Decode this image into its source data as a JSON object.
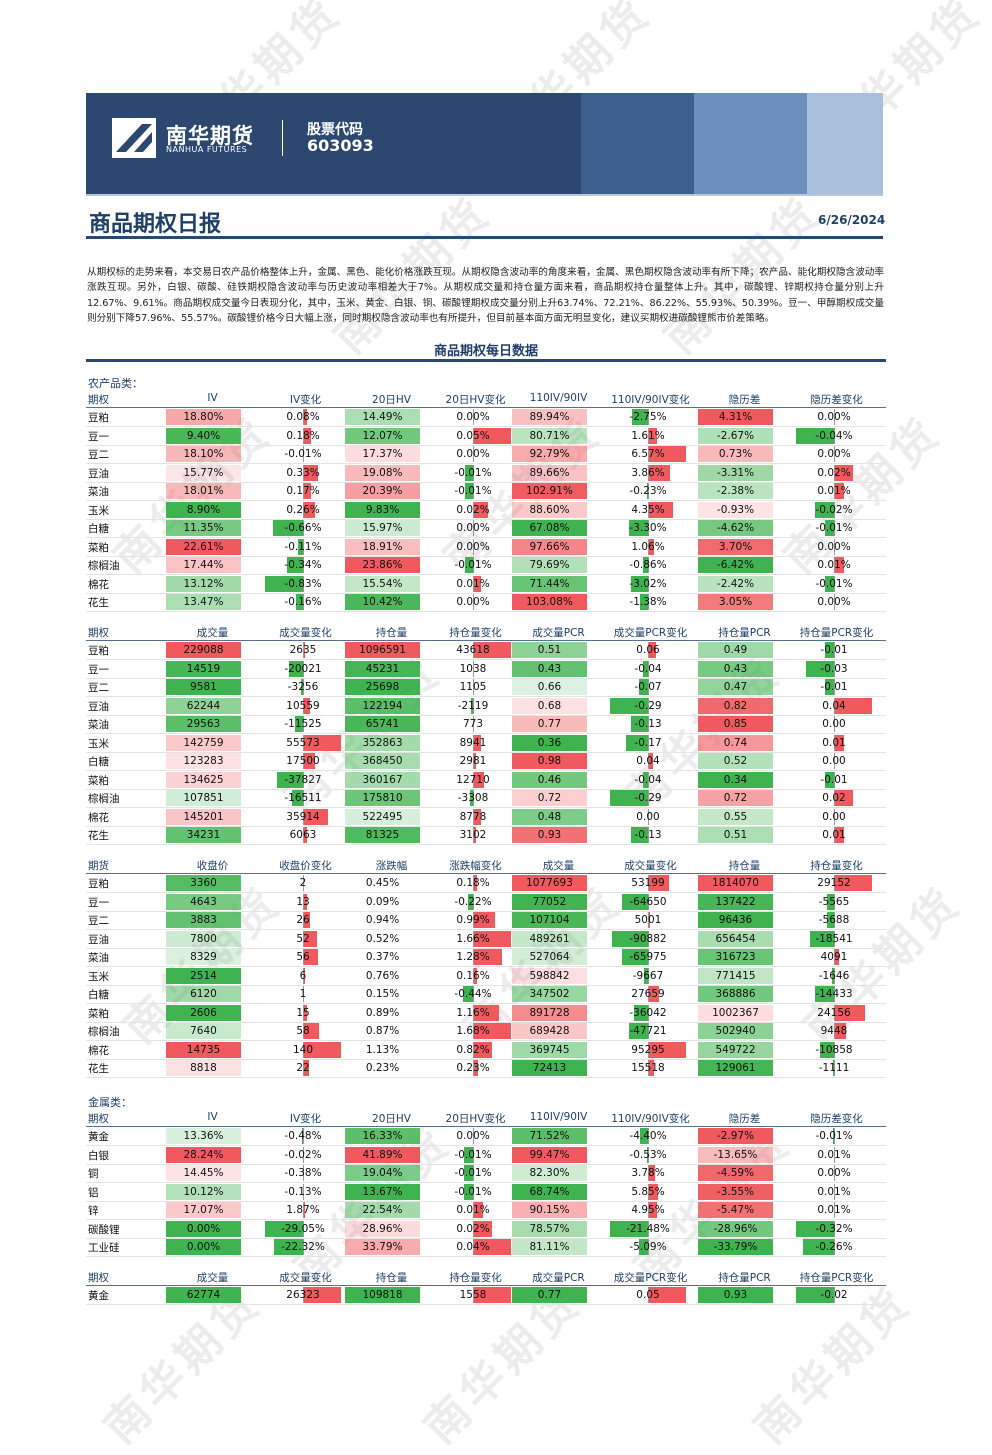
{
  "header": {
    "logo_cn": "南华期货",
    "logo_en": "NANHUA FUTURES",
    "stock_label": "股票代码",
    "stock_code": "603093"
  },
  "title": "商品期权日报",
  "date": "6/26/2024",
  "summary": "从期权标的走势来看，本交易日农产品价格整体上升，金属、黑色、能化价格涨跌互现。从期权隐含波动率的角度来看，金属、黑色期权隐含波动率有所下降；农产品、能化期权隐含波动率涨跌互现。另外，白银、碳酸、硅铁期权隐含波动率与历史波动率相差大于7%。从期权成交量和持仓量方面来看，商品期权持仓量整体上升。其中，碳酸锂、锌期权持仓量分别上升12.67%、9.61%。商品期权成交量今日表现分化，其中，玉米、黄金、白银、铜、碳酸锂期权成交量分别上升63.74%、72.21%、86.22%、55.93%、50.39%。豆一、甲醇期权成交量则分别下降57.96%、55.57%。碳酸锂价格今日大幅上涨，同时期权隐含波动率也有所提升，但目前基本面方面无明显变化，建议买期权进碳酸锂熊市价差策略。",
  "section_title": "商品期权每日数据",
  "agri": {
    "category": "农产品类：",
    "t1": {
      "headers": [
        "期权",
        "IV",
        "IV变化",
        "20日HV",
        "20日HV变化",
        "110IV/90IV",
        "110IV/90IV变化",
        "隐历差",
        "隐历差变化"
      ],
      "rows": [
        [
          "豆粕",
          "18.80%",
          "0.08%",
          "14.49%",
          "0.00%",
          "89.94%",
          "-2.75%",
          "4.31%",
          "0.00%"
        ],
        [
          "豆一",
          "9.40%",
          "0.18%",
          "12.07%",
          "0.05%",
          "80.71%",
          "1.61%",
          "-2.67%",
          "-0.04%"
        ],
        [
          "豆二",
          "18.10%",
          "-0.01%",
          "17.37%",
          "0.00%",
          "92.79%",
          "6.57%",
          "0.73%",
          "0.00%"
        ],
        [
          "豆油",
          "15.77%",
          "0.33%",
          "19.08%",
          "-0.01%",
          "89.66%",
          "3.86%",
          "-3.31%",
          "0.02%"
        ],
        [
          "菜油",
          "18.01%",
          "0.17%",
          "20.39%",
          "-0.01%",
          "102.91%",
          "-0.23%",
          "-2.38%",
          "0.01%"
        ],
        [
          "玉米",
          "8.90%",
          "0.26%",
          "9.83%",
          "0.02%",
          "88.60%",
          "4.35%",
          "-0.93%",
          "-0.02%"
        ],
        [
          "白糖",
          "11.35%",
          "-0.66%",
          "15.97%",
          "0.00%",
          "67.08%",
          "-3.30%",
          "-4.62%",
          "-0.01%"
        ],
        [
          "菜粕",
          "22.61%",
          "-0.11%",
          "18.91%",
          "0.00%",
          "97.66%",
          "1.06%",
          "3.70%",
          "0.00%"
        ],
        [
          "棕榈油",
          "17.44%",
          "-0.34%",
          "23.86%",
          "-0.01%",
          "79.69%",
          "-0.86%",
          "-6.42%",
          "0.01%"
        ],
        [
          "棉花",
          "13.12%",
          "-0.83%",
          "15.54%",
          "0.01%",
          "71.44%",
          "-3.02%",
          "-2.42%",
          "-0.01%"
        ],
        [
          "花生",
          "13.47%",
          "-0.16%",
          "10.42%",
          "0.00%",
          "103.08%",
          "-1.38%",
          "3.05%",
          "0.00%"
        ]
      ]
    },
    "t2": {
      "headers": [
        "期权",
        "成交量",
        "成交量变化",
        "持仓量",
        "持仓量变化",
        "成交量PCR",
        "成交量PCR变化",
        "持仓量PCR",
        "持仓量PCR变化"
      ],
      "rows": [
        [
          "豆粕",
          "229088",
          "2635",
          "1096591",
          "43618",
          "0.51",
          "0.06",
          "0.49",
          "-0.01"
        ],
        [
          "豆一",
          "14519",
          "-20021",
          "45231",
          "1038",
          "0.43",
          "-0.04",
          "0.43",
          "-0.03"
        ],
        [
          "豆二",
          "9581",
          "-3256",
          "25698",
          "1105",
          "0.66",
          "-0.07",
          "0.47",
          "-0.01"
        ],
        [
          "豆油",
          "62244",
          "10559",
          "122194",
          "-2119",
          "0.68",
          "-0.29",
          "0.82",
          "0.04"
        ],
        [
          "菜油",
          "29563",
          "-11525",
          "65741",
          "773",
          "0.77",
          "-0.13",
          "0.85",
          "0.00"
        ],
        [
          "玉米",
          "142759",
          "55573",
          "352863",
          "8941",
          "0.36",
          "-0.17",
          "0.74",
          "0.01"
        ],
        [
          "白糖",
          "123283",
          "17500",
          "368450",
          "2981",
          "0.98",
          "0.04",
          "0.52",
          "0.00"
        ],
        [
          "菜粕",
          "134625",
          "-37827",
          "360167",
          "12710",
          "0.46",
          "-0.04",
          "0.34",
          "-0.01"
        ],
        [
          "棕榈油",
          "107851",
          "-16511",
          "175810",
          "-3308",
          "0.72",
          "-0.29",
          "0.72",
          "0.02"
        ],
        [
          "棉花",
          "145201",
          "35914",
          "522495",
          "8778",
          "0.48",
          "0.00",
          "0.55",
          "0.00"
        ],
        [
          "花生",
          "34231",
          "6063",
          "81325",
          "3102",
          "0.93",
          "-0.13",
          "0.51",
          "0.01"
        ]
      ]
    },
    "t3": {
      "headers": [
        "期货",
        "收盘价",
        "收盘价变化",
        "涨跌幅",
        "涨跌幅变化",
        "成交量",
        "成交量变化",
        "持仓量",
        "持仓量变化"
      ],
      "rows": [
        [
          "豆粕",
          "3360",
          "2",
          "0.45%",
          "0.18%",
          "1077693",
          "53199",
          "1814070",
          "29152"
        ],
        [
          "豆一",
          "4643",
          "13",
          "0.09%",
          "-0.22%",
          "77052",
          "-64650",
          "137422",
          "-5565"
        ],
        [
          "豆二",
          "3883",
          "26",
          "0.94%",
          "0.99%",
          "107104",
          "5001",
          "96436",
          "-5688"
        ],
        [
          "豆油",
          "7800",
          "52",
          "0.52%",
          "1.66%",
          "489261",
          "-90882",
          "656454",
          "-18541"
        ],
        [
          "菜油",
          "8329",
          "56",
          "0.37%",
          "1.28%",
          "527064",
          "-65975",
          "316723",
          "4091"
        ],
        [
          "玉米",
          "2514",
          "6",
          "0.76%",
          "0.16%",
          "598842",
          "-9667",
          "771415",
          "-1646"
        ],
        [
          "白糖",
          "6120",
          "1",
          "0.15%",
          "-0.44%",
          "347502",
          "27659",
          "368886",
          "-14433"
        ],
        [
          "菜粕",
          "2606",
          "15",
          "0.89%",
          "1.16%",
          "891728",
          "-36042",
          "1002367",
          "24156"
        ],
        [
          "棕榈油",
          "7640",
          "58",
          "0.87%",
          "1.68%",
          "689428",
          "-47721",
          "502940",
          "9448"
        ],
        [
          "棉花",
          "14735",
          "140",
          "1.13%",
          "0.82%",
          "369745",
          "95295",
          "549722",
          "-10858"
        ],
        [
          "花生",
          "8818",
          "22",
          "0.23%",
          "0.23%",
          "72413",
          "15518",
          "129061",
          "-1111"
        ]
      ]
    }
  },
  "metal": {
    "category": "金属类：",
    "t1": {
      "headers": [
        "期权",
        "IV",
        "IV变化",
        "20日HV",
        "20日HV变化",
        "110IV/90IV",
        "110IV/90IV变化",
        "隐历差",
        "隐历差变化"
      ],
      "rows": [
        [
          "黄金",
          "13.36%",
          "-0.48%",
          "16.33%",
          "0.00%",
          "71.52%",
          "-4.40%",
          "-2.97%",
          "-0.01%"
        ],
        [
          "白银",
          "28.24%",
          "-0.02%",
          "41.89%",
          "-0.01%",
          "99.47%",
          "-0.53%",
          "-13.65%",
          "0.01%"
        ],
        [
          "铜",
          "14.45%",
          "-0.38%",
          "19.04%",
          "-0.01%",
          "82.30%",
          "3.78%",
          "-4.59%",
          "0.00%"
        ],
        [
          "铝",
          "10.12%",
          "-0.13%",
          "13.67%",
          "-0.01%",
          "68.74%",
          "5.85%",
          "-3.55%",
          "0.01%"
        ],
        [
          "锌",
          "17.07%",
          "1.87%",
          "22.54%",
          "0.01%",
          "90.15%",
          "4.95%",
          "-5.47%",
          "0.01%"
        ],
        [
          "碳酸锂",
          "0.00%",
          "-29.05%",
          "28.96%",
          "0.02%",
          "78.57%",
          "-21.48%",
          "-28.96%",
          "-0.32%"
        ],
        [
          "工业硅",
          "0.00%",
          "-22.32%",
          "33.79%",
          "0.04%",
          "81.11%",
          "-5.09%",
          "-33.79%",
          "-0.26%"
        ]
      ]
    },
    "t2": {
      "headers": [
        "期权",
        "成交量",
        "成交量变化",
        "持仓量",
        "持仓量变化",
        "成交量PCR",
        "成交量PCR变化",
        "持仓量PCR",
        "持仓量PCR变化"
      ],
      "rows": [
        [
          "黄金",
          "62774",
          "26323",
          "109818",
          "1558",
          "0.77",
          "0.05",
          "0.93",
          "-0.02"
        ]
      ]
    }
  },
  "watermark": "南华期货",
  "colors": {
    "navy": "#2c4770",
    "red": "#f05a5e",
    "green": "#3fb34f"
  }
}
